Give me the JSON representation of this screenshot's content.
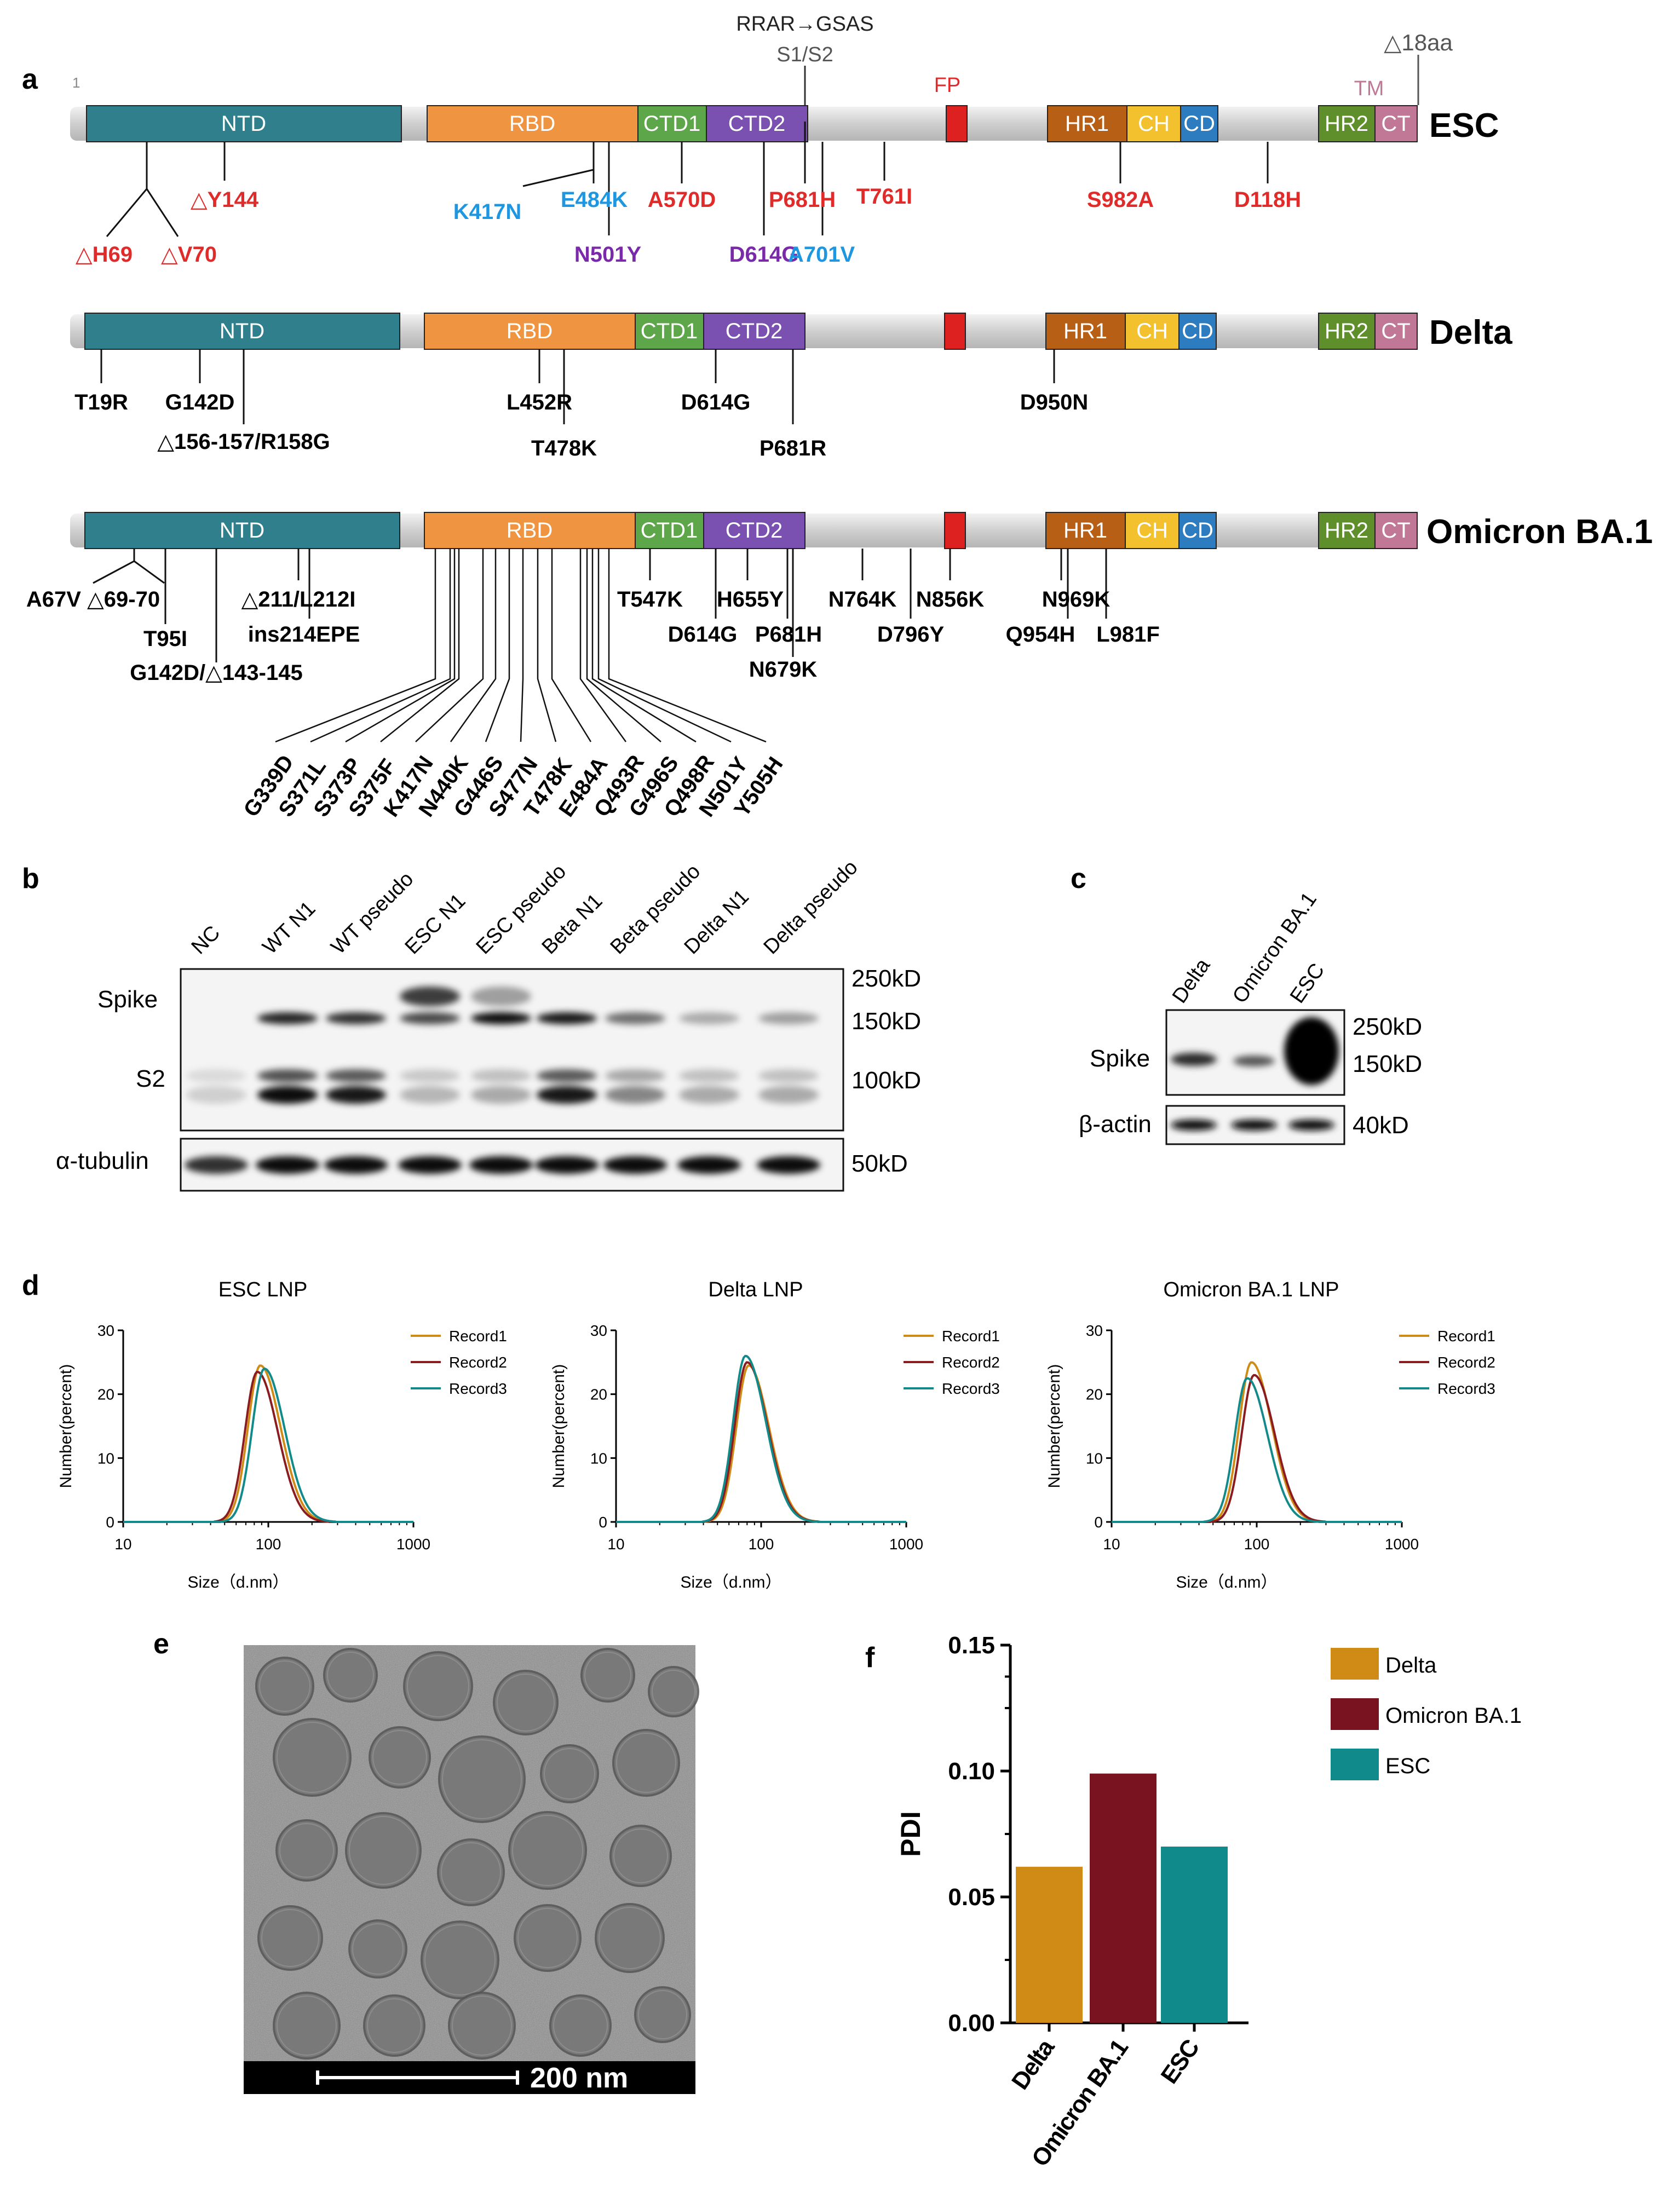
{
  "panels": {
    "a": "a",
    "b": "b",
    "c": "c",
    "d": "d",
    "e": "e",
    "f": "f"
  },
  "colors": {
    "ntd": "#2f7f8c",
    "rbd": "#ef9440",
    "ctd1": "#5ea64a",
    "ctd2": "#7a50b0",
    "fp": "#dd2020",
    "hr1": "#b85f16",
    "ch": "#f3c12d",
    "cd": "#2d7cc0",
    "hr2": "#5f8f2a",
    "ct": "#c07896",
    "bar": "#d0d0d0",
    "delta": "#d08a16",
    "omicron": "#7a1320",
    "esc": "#108a8a"
  },
  "panel_a": {
    "domains": {
      "ntd": "NTD",
      "rbd": "RBD",
      "ctd1": "CTD1",
      "ctd2": "CTD2",
      "fp": "FP",
      "hr1": "HR1",
      "ch": "CH",
      "cd": "CD",
      "hr2": "HR2",
      "ct": "CT",
      "tm": "TM"
    },
    "top_labels": {
      "rrar": "RRAR→GSAS",
      "s1s2": "S1/S2",
      "d18aa": "△18aa",
      "one": "1"
    },
    "variants": {
      "esc": "ESC",
      "delta": "Delta",
      "omicron": "Omicron BA.1"
    },
    "esc_mutations": [
      "△Y144",
      "△H69",
      "△V70",
      "K417N",
      "E484K",
      "N501Y",
      "A570D",
      "D614G",
      "P681H",
      "A701V",
      "T761I",
      "S982A",
      "D118H"
    ],
    "delta_mutations": [
      "T19R",
      "G142D",
      "△156-157/R158G",
      "L452R",
      "T478K",
      "D614G",
      "P681R",
      "D950N"
    ],
    "omicron_mutations": [
      "A67V △69-70",
      "T95I",
      "G142D/△143-145",
      "△211/L212I",
      "ins214EPE",
      "T547K",
      "H655Y",
      "D614G",
      "P681H",
      "N679K",
      "N764K",
      "N856K",
      "D796Y",
      "N969K",
      "Q954H",
      "L981F"
    ],
    "omicron_rbd_mutations": [
      "G339D",
      "S371L",
      "S373P",
      "S375F",
      "K417N",
      "N440K",
      "G446S",
      "S477N",
      "T478K",
      "E484A",
      "Q493R",
      "G496S",
      "Q498R",
      "N501Y",
      "Y505H"
    ]
  },
  "panel_b": {
    "lanes": [
      "NC",
      "WT N1",
      "WT pseudo",
      "ESC N1",
      "ESC pseudo",
      "Beta N1",
      "Beta pseudo",
      "Delta N1",
      "Delta pseudo"
    ],
    "row_labels": {
      "spike": "Spike",
      "s2": "S2",
      "tubulin": "α-tubulin"
    },
    "markers": {
      "m250": "250kD",
      "m150": "150kD",
      "m100": "100kD",
      "m50": "50kD"
    }
  },
  "panel_c": {
    "lanes": [
      "Delta",
      "Omicron BA.1",
      "ESC"
    ],
    "row_labels": {
      "spike": "Spike",
      "actin": "β-actin"
    },
    "markers": {
      "m250": "250kD",
      "m150": "150kD",
      "m40": "40kD"
    }
  },
  "chart_data": [
    {
      "type": "line",
      "title": "ESC LNP",
      "xscale": "log",
      "xlim": [
        10,
        1000
      ],
      "ylim": [
        0,
        30
      ],
      "xticks": [
        "10",
        "100",
        "1000"
      ],
      "yticks": [
        "0",
        "10",
        "20",
        "30"
      ],
      "xlabel": "Size（d.nm）",
      "ylabel": "Number(percent)",
      "series": [
        {
          "name": "Record1",
          "color": "#d08a16",
          "peak": 88,
          "height": 24.5
        },
        {
          "name": "Record2",
          "color": "#8a1c20",
          "peak": 84,
          "height": 23.5
        },
        {
          "name": "Record3",
          "color": "#138a8a",
          "peak": 94,
          "height": 24.0
        }
      ]
    },
    {
      "type": "line",
      "title": "Delta LNP",
      "xscale": "log",
      "xlim": [
        10,
        1000
      ],
      "ylim": [
        0,
        30
      ],
      "xticks": [
        "10",
        "100",
        "1000"
      ],
      "yticks": [
        "0",
        "10",
        "20",
        "30"
      ],
      "xlabel": "Size（d.nm）",
      "ylabel": "Number(percent)",
      "series": [
        {
          "name": "Record1",
          "color": "#d08a16",
          "peak": 82,
          "height": 24.5
        },
        {
          "name": "Record2",
          "color": "#8a1c20",
          "peak": 80,
          "height": 25.0
        },
        {
          "name": "Record3",
          "color": "#138a8a",
          "peak": 78,
          "height": 26.0
        }
      ]
    },
    {
      "type": "line",
      "title": "Omicron BA.1 LNP",
      "xscale": "log",
      "xlim": [
        10,
        1000
      ],
      "ylim": [
        0,
        30
      ],
      "xticks": [
        "10",
        "100",
        "1000"
      ],
      "yticks": [
        "0",
        "10",
        "20",
        "30"
      ],
      "xlabel": "Size（d.nm）",
      "ylabel": "Number(percent)",
      "series": [
        {
          "name": "Record1",
          "color": "#d08a16",
          "peak": 92,
          "height": 25.0
        },
        {
          "name": "Record2",
          "color": "#8a1c20",
          "peak": 96,
          "height": 23.0
        },
        {
          "name": "Record3",
          "color": "#138a8a",
          "peak": 86,
          "height": 22.5
        }
      ]
    },
    {
      "type": "bar",
      "title": "",
      "categories": [
        "Delta",
        "Omicron BA.1",
        "ESC"
      ],
      "values": [
        0.062,
        0.099,
        0.07
      ],
      "colors": [
        "#d08a16",
        "#7a1320",
        "#108a8a"
      ],
      "ylabel": "PDI",
      "ylim": [
        0,
        0.15
      ],
      "yticks": [
        "0.00",
        "0.05",
        "0.10",
        "0.15"
      ],
      "legend": [
        "Delta",
        "Omicron BA.1",
        "ESC"
      ]
    }
  ],
  "panel_e": {
    "scale_label": "200 nm"
  }
}
